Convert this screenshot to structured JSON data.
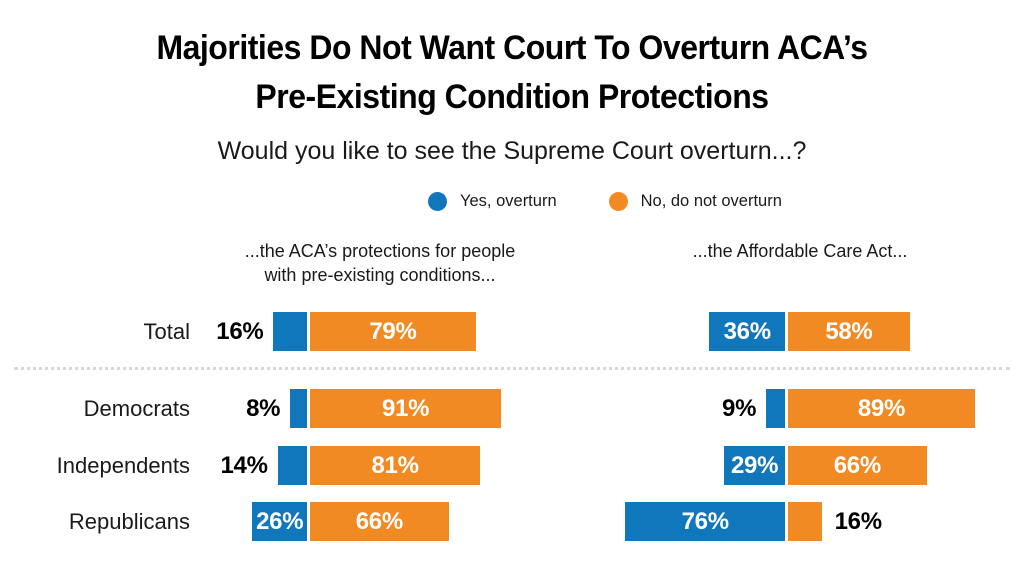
{
  "title": {
    "line1": "Majorities Do Not Want Court To Overturn ACA’s",
    "line2": "Pre-Existing Condition Protections"
  },
  "subtitle": "Would you like to see the Supreme Court overturn...?",
  "legend": [
    {
      "label": "Yes, overturn",
      "color": "#1177bd"
    },
    {
      "label": "No, do not overturn",
      "color": "#f18a22"
    }
  ],
  "colors": {
    "yes": "#1177bd",
    "no": "#f18a22",
    "inside_label": "#ffffff",
    "outside_label": "#000000",
    "separator": "#d8d8d8"
  },
  "chart_data": {
    "type": "bar",
    "variant": "diverging-stacked-horizontal",
    "unit": "%",
    "title": "Majorities Do Not Want Court To Overturn ACA’s Pre-Existing Condition Protections",
    "subtitle": "Would you like to see the Supreme Court overturn...?",
    "categories": [
      "Total",
      "Democrats",
      "Independents",
      "Republicans"
    ],
    "legend_entries": [
      "Yes, overturn",
      "No, do not overturn"
    ],
    "legend_position": "top",
    "grid": false,
    "panels": [
      {
        "heading_lines": [
          "...the ACA’s protections for people",
          "with pre-existing conditions..."
        ],
        "series": [
          {
            "name": "Yes, overturn",
            "values": [
              16,
              8,
              14,
              26
            ]
          },
          {
            "name": "No, do not overturn",
            "values": [
              79,
              91,
              81,
              66
            ]
          }
        ]
      },
      {
        "heading_lines": [
          "...the Affordable Care Act..."
        ],
        "series": [
          {
            "name": "Yes, overturn",
            "values": [
              36,
              9,
              29,
              76
            ]
          },
          {
            "name": "No, do not overturn",
            "values": [
              58,
              89,
              66,
              16
            ]
          }
        ]
      }
    ],
    "value_label_format": "{value}%"
  }
}
